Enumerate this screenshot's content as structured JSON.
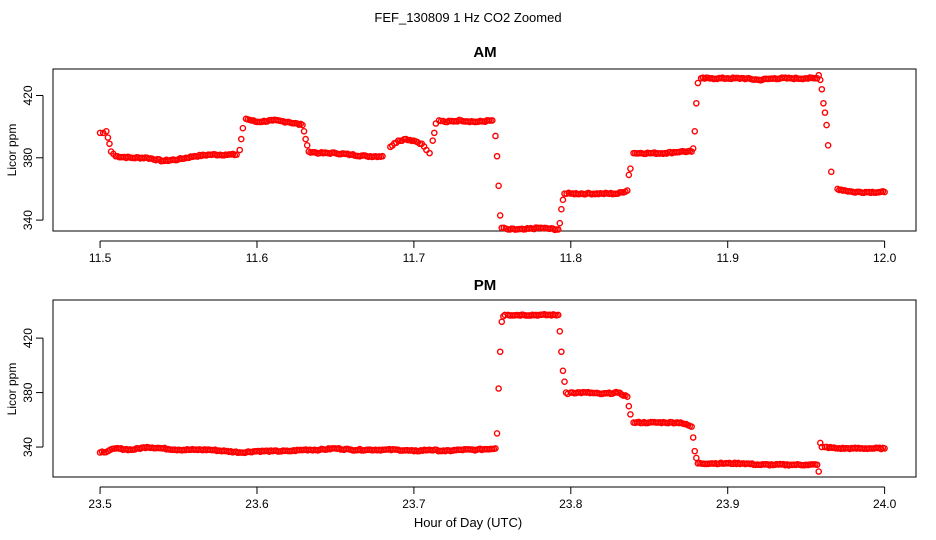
{
  "figure": {
    "title": "FEF_130809  1 Hz CO2 Zoomed",
    "xlabel": "Hour of Day (UTC)"
  },
  "chart_data": [
    {
      "type": "scatter",
      "title": "AM",
      "xlabel": "",
      "ylabel": "Licor ppm",
      "xlim": [
        11.47,
        12.02
      ],
      "ylim": [
        333,
        437
      ],
      "xticks": [
        11.5,
        11.6,
        11.7,
        11.8,
        11.9,
        12.0
      ],
      "xtick_labels": [
        "11.5",
        "11.6",
        "11.7",
        "11.8",
        "11.9",
        "12.0"
      ],
      "yticks": [
        340,
        380,
        420
      ],
      "ytick_labels": [
        "340",
        "380",
        "420"
      ],
      "grid": false,
      "legend": "none",
      "marker_color": "#ff0000",
      "marker": "open-circle",
      "series": [
        {
          "x": [
            11.5,
            11.502,
            11.504,
            11.505,
            11.506,
            11.507,
            11.51,
            11.52,
            11.53,
            11.54,
            11.55,
            11.56,
            11.57,
            11.58,
            11.587,
            11.589,
            11.59,
            11.591,
            11.593,
            11.6,
            11.61,
            11.62,
            11.629,
            11.63,
            11.631,
            11.632,
            11.633,
            11.64,
            11.65,
            11.66,
            11.67,
            11.68,
            11.685,
            11.69,
            11.695,
            11.7,
            11.705,
            11.708,
            11.71,
            11.712,
            11.713,
            11.714,
            11.716,
            11.72,
            11.73,
            11.74,
            11.75,
            11.752,
            11.753,
            11.754,
            11.755,
            11.756,
            11.76,
            11.77,
            11.78,
            11.792,
            11.793,
            11.794,
            11.795,
            11.796,
            11.8,
            11.81,
            11.82,
            11.83,
            11.836,
            11.837,
            11.838,
            11.84,
            11.85,
            11.86,
            11.87,
            11.877,
            11.878,
            11.879,
            11.88,
            11.881,
            11.883,
            11.89,
            11.9,
            11.91,
            11.92,
            11.93,
            11.94,
            11.95,
            11.957,
            11.958,
            11.959,
            11.96,
            11.961,
            11.962,
            11.963,
            11.964,
            11.966,
            11.97,
            11.98,
            11.99,
            12.0
          ],
          "y": [
            396,
            396,
            397,
            393,
            389,
            384,
            381,
            380,
            380,
            378,
            379,
            381,
            382,
            382,
            382,
            385,
            392,
            399,
            405,
            403,
            404,
            403,
            401,
            397,
            392,
            388,
            384,
            383,
            383,
            382,
            381,
            381,
            387,
            391,
            392,
            391,
            389,
            385,
            383,
            391,
            396,
            402,
            404,
            403,
            404,
            403,
            404,
            394,
            381,
            362,
            343,
            335,
            334,
            334,
            335,
            334,
            338,
            347,
            353,
            357,
            357,
            357,
            357,
            357,
            359,
            369,
            373,
            383,
            383,
            383,
            384,
            384,
            386,
            397,
            415,
            428,
            431,
            431,
            431,
            431,
            430,
            431,
            431,
            431,
            431,
            433,
            430,
            424,
            415,
            409,
            401,
            388,
            371,
            360,
            358,
            358,
            358
          ]
        }
      ]
    },
    {
      "type": "scatter",
      "title": "PM",
      "xlabel": "",
      "ylabel": "Licor ppm",
      "xlim": [
        23.47,
        24.02
      ],
      "ylim": [
        318,
        448
      ],
      "xticks": [
        23.5,
        23.6,
        23.7,
        23.8,
        23.9,
        24.0
      ],
      "xtick_labels": [
        "23.5",
        "23.6",
        "23.7",
        "23.8",
        "23.9",
        "24.0"
      ],
      "yticks": [
        340,
        380,
        420
      ],
      "ytick_labels": [
        "340",
        "380",
        "420"
      ],
      "grid": false,
      "legend": "none",
      "marker_color": "#ff0000",
      "marker": "open-circle",
      "series": [
        {
          "x": [
            23.5,
            23.505,
            23.51,
            23.52,
            23.53,
            23.54,
            23.55,
            23.56,
            23.57,
            23.58,
            23.59,
            23.6,
            23.61,
            23.62,
            23.63,
            23.64,
            23.65,
            23.66,
            23.67,
            23.68,
            23.69,
            23.7,
            23.71,
            23.72,
            23.73,
            23.74,
            23.752,
            23.753,
            23.754,
            23.755,
            23.756,
            23.757,
            23.758,
            23.76,
            23.77,
            23.78,
            23.792,
            23.793,
            23.794,
            23.795,
            23.796,
            23.797,
            23.798,
            23.8,
            23.81,
            23.82,
            23.83,
            23.836,
            23.837,
            23.838,
            23.84,
            23.85,
            23.86,
            23.87,
            23.877,
            23.878,
            23.879,
            23.88,
            23.881,
            23.89,
            23.9,
            23.91,
            23.92,
            23.93,
            23.94,
            23.95,
            23.957,
            23.958,
            23.959,
            23.96,
            23.962,
            23.97,
            23.98,
            23.99,
            24.0
          ],
          "y": [
            336,
            337,
            339,
            338,
            340,
            339,
            338,
            338,
            338,
            337,
            336,
            337,
            337,
            337,
            338,
            338,
            339,
            338,
            338,
            338,
            338,
            337,
            338,
            337,
            338,
            338,
            339,
            350,
            383,
            410,
            432,
            436,
            437,
            437,
            437,
            437,
            437,
            425,
            410,
            396,
            388,
            380,
            379,
            380,
            380,
            379,
            380,
            377,
            370,
            364,
            358,
            358,
            358,
            358,
            355,
            347,
            337,
            332,
            328,
            328,
            328,
            328,
            327,
            327,
            327,
            327,
            327,
            322,
            343,
            340,
            340,
            339,
            339,
            339,
            339
          ]
        }
      ]
    }
  ]
}
